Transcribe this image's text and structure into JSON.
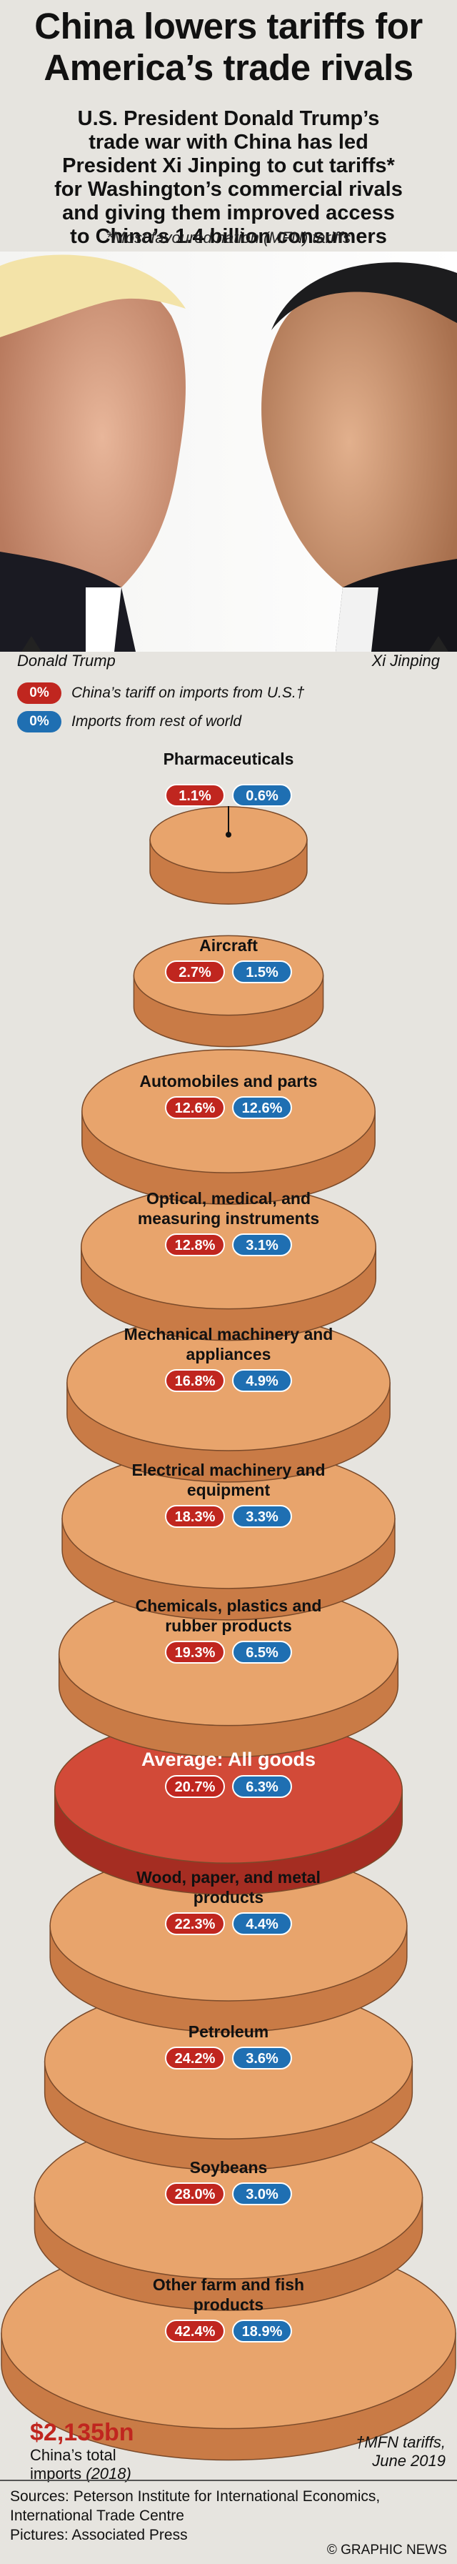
{
  "header": {
    "title_line1": "China lowers tariffs for",
    "title_line2": "America’s trade rivals",
    "subtitle_lines": [
      "U.S. President Donald Trump’s",
      "trade war with China has led",
      "President Xi Jinping to cut tariffs*",
      "for Washington’s commercial rivals",
      "and giving them improved access",
      "to China’s 1.4 billion consumers"
    ],
    "footnote": "*Most favoured nation (MFN) tariffs"
  },
  "photos": {
    "left_name": "Donald Trump",
    "right_name": "Xi Jinping"
  },
  "legend": [
    {
      "swatch": "0%",
      "label": "China’s tariff on imports from U.S.†",
      "color": "#c0261f"
    },
    {
      "swatch": "0%",
      "label": "Imports from rest of world",
      "color": "#1f6fb2"
    }
  ],
  "colors": {
    "disc_face": "#e8a46c",
    "disc_side": "#c97b46",
    "disc_outline": "#7a4a2a",
    "avg_face": "#d24a38",
    "avg_side": "#a52d22",
    "us_pill": "#c0261f",
    "row_pill": "#1f6fb2"
  },
  "chart_data": {
    "type": "table",
    "title": "China lowers tariffs for America’s trade rivals",
    "columns": [
      "China’s tariff on imports from U.S.†",
      "Imports from rest of world"
    ],
    "unit": "%",
    "rows": [
      {
        "category": "Pharmaceuticals",
        "us": 1.1,
        "row": 0.6,
        "us_label": "1.1%",
        "row_label": "0.6%"
      },
      {
        "category": "Aircraft",
        "us": 2.7,
        "row": 1.5,
        "us_label": "2.7%",
        "row_label": "1.5%"
      },
      {
        "category": "Automobiles and parts",
        "us": 12.6,
        "row": 12.6,
        "us_label": "12.6%",
        "row_label": "12.6%"
      },
      {
        "category": "Optical, medical, and measuring instruments",
        "us": 12.8,
        "row": 3.1,
        "us_label": "12.8%",
        "row_label": "3.1%"
      },
      {
        "category": "Mechanical machinery and appliances",
        "us": 16.8,
        "row": 4.9,
        "us_label": "16.8%",
        "row_label": "4.9%"
      },
      {
        "category": "Electrical machinery and equipment",
        "us": 18.3,
        "row": 3.3,
        "us_label": "18.3%",
        "row_label": "3.3%"
      },
      {
        "category": "Chemicals, plastics and rubber products",
        "us": 19.3,
        "row": 6.5,
        "us_label": "19.3%",
        "row_label": "6.5%"
      },
      {
        "category": "Average: All goods",
        "us": 20.7,
        "row": 6.3,
        "us_label": "20.7%",
        "row_label": "6.3%",
        "highlight": true
      },
      {
        "category": "Wood, paper, and metal products",
        "us": 22.3,
        "row": 4.4,
        "us_label": "22.3%",
        "row_label": "4.4%"
      },
      {
        "category": "Petroleum",
        "us": 24.2,
        "row": 3.6,
        "us_label": "24.2%",
        "row_label": "3.6%"
      },
      {
        "category": "Soybeans",
        "us": 28.0,
        "row": 3.0,
        "us_label": "28.0%",
        "row_label": "3.0%"
      },
      {
        "category": "Other farm and fish products",
        "us": 42.4,
        "row": 18.9,
        "us_label": "42.4%",
        "row_label": "18.9%"
      }
    ]
  },
  "totals": {
    "value": "$2,135bn",
    "label_line1": "China’s total",
    "label_line2": "imports",
    "label_year": "(2018)"
  },
  "mfn_note": {
    "line1": "†MFN tariffs,",
    "line2": "June 2019"
  },
  "footer": {
    "sources_line1": "Sources:  Peterson Institute for International Economics,",
    "sources_line2": "International Trade Centre",
    "pictures": "Pictures: Associated Press",
    "brand": "© GRAPHIC NEWS"
  }
}
